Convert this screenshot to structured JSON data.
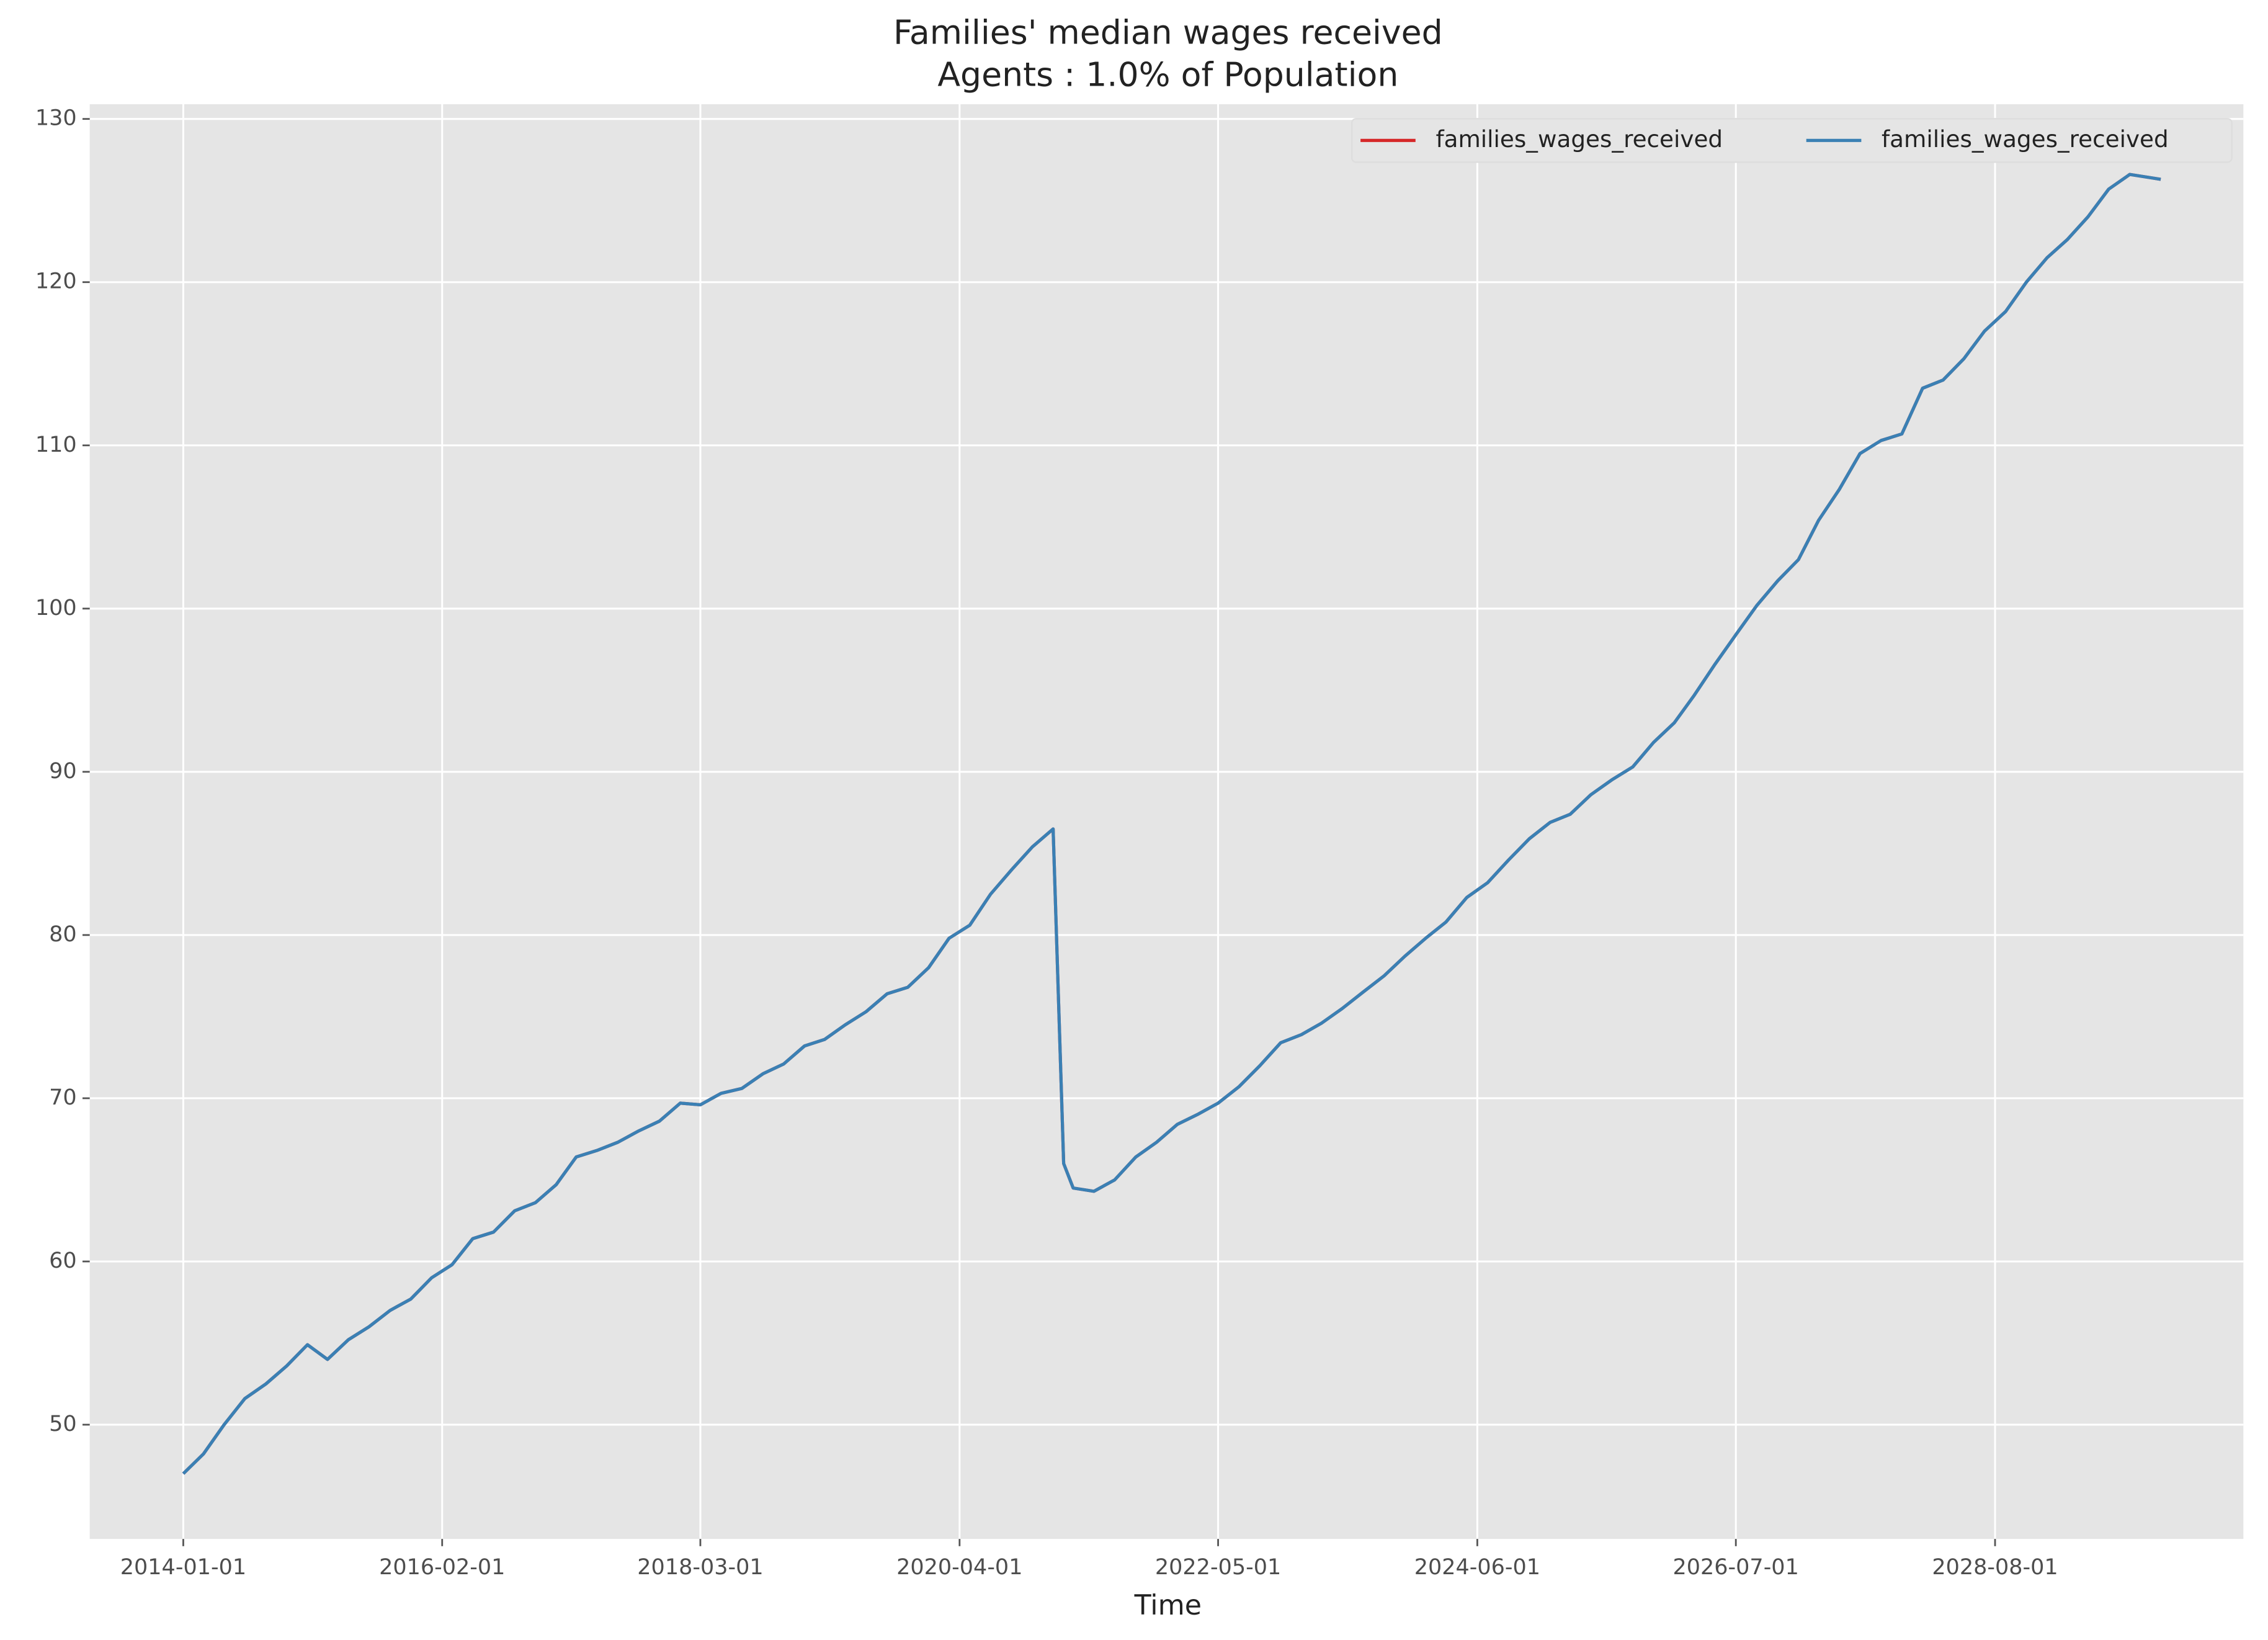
{
  "chart_data": {
    "type": "line",
    "title": "Families' median wages received",
    "subtitle": "Agents : 1.0% of Population",
    "xlabel": "Time",
    "x": [
      "2014-01-01",
      "2014-03-01",
      "2014-05-01",
      "2014-07-01",
      "2014-09-01",
      "2014-11-01",
      "2015-01-01",
      "2015-03-01",
      "2015-05-01",
      "2015-07-01",
      "2015-09-01",
      "2015-11-01",
      "2016-01-01",
      "2016-03-01",
      "2016-05-01",
      "2016-07-01",
      "2016-09-01",
      "2016-11-01",
      "2017-01-01",
      "2017-03-01",
      "2017-05-01",
      "2017-07-01",
      "2017-09-01",
      "2017-11-01",
      "2018-01-01",
      "2018-03-01",
      "2018-05-01",
      "2018-07-01",
      "2018-09-01",
      "2018-11-01",
      "2019-01-01",
      "2019-03-01",
      "2019-05-01",
      "2019-07-01",
      "2019-09-01",
      "2019-11-01",
      "2020-01-01",
      "2020-03-01",
      "2020-05-01",
      "2020-07-01",
      "2020-09-01",
      "2020-11-01",
      "2021-01-01",
      "2021-02-01",
      "2021-03-01",
      "2021-05-01",
      "2021-07-01",
      "2021-09-01",
      "2021-11-01",
      "2022-01-01",
      "2022-03-01",
      "2022-05-01",
      "2022-07-01",
      "2022-09-01",
      "2022-11-01",
      "2023-01-01",
      "2023-03-01",
      "2023-05-01",
      "2023-07-01",
      "2023-09-01",
      "2023-11-01",
      "2024-01-01",
      "2024-03-01",
      "2024-05-01",
      "2024-07-01",
      "2024-09-01",
      "2024-11-01",
      "2025-01-01",
      "2025-03-01",
      "2025-05-01",
      "2025-07-01",
      "2025-09-01",
      "2025-11-01",
      "2026-01-01",
      "2026-03-01",
      "2026-05-01",
      "2026-07-01",
      "2026-09-01",
      "2026-11-01",
      "2027-01-01",
      "2027-03-01",
      "2027-05-01",
      "2027-07-01",
      "2027-09-01",
      "2027-11-01",
      "2028-01-01",
      "2028-03-01",
      "2028-05-01",
      "2028-07-01",
      "2028-09-01",
      "2028-11-01",
      "2029-01-01",
      "2029-03-01",
      "2029-05-01",
      "2029-07-01",
      "2029-09-01",
      "2029-11-01",
      "2029-12-01"
    ],
    "series": [
      {
        "name": "families_wages_received",
        "color": "#d62728",
        "values": [
          47.0,
          48.2,
          50.0,
          51.6,
          52.5,
          53.6,
          54.9,
          54.0,
          55.2,
          56.0,
          57.0,
          57.7,
          59.0,
          59.8,
          61.4,
          61.8,
          63.1,
          63.6,
          64.7,
          66.4,
          66.8,
          67.3,
          68.0,
          68.6,
          69.7,
          69.6,
          70.3,
          70.6,
          71.5,
          72.1,
          73.2,
          73.6,
          74.5,
          75.3,
          76.4,
          76.8,
          78.0,
          79.8,
          80.6,
          82.5,
          84.0,
          85.4,
          86.5,
          66.0,
          64.5,
          64.3,
          65.0,
          66.4,
          67.3,
          68.4,
          69.0,
          69.7,
          70.7,
          72.0,
          73.4,
          73.9,
          74.6,
          75.5,
          76.5,
          77.5,
          78.7,
          79.8,
          80.8,
          82.3,
          83.2,
          84.6,
          85.9,
          86.9,
          87.4,
          88.6,
          89.5,
          90.3,
          91.8,
          93.0,
          94.7,
          96.6,
          98.4,
          100.2,
          101.7,
          103.0,
          105.4,
          107.3,
          109.5,
          110.3,
          110.7,
          113.5,
          114.0,
          115.3,
          117.0,
          118.2,
          120.0,
          121.5,
          122.6,
          124.0,
          125.7,
          126.6,
          126.4,
          126.3
        ]
      },
      {
        "name": "families_wages_received",
        "color": "#3a80b4",
        "values": [
          47.0,
          48.2,
          50.0,
          51.6,
          52.5,
          53.6,
          54.9,
          54.0,
          55.2,
          56.0,
          57.0,
          57.7,
          59.0,
          59.8,
          61.4,
          61.8,
          63.1,
          63.6,
          64.7,
          66.4,
          66.8,
          67.3,
          68.0,
          68.6,
          69.7,
          69.6,
          70.3,
          70.6,
          71.5,
          72.1,
          73.2,
          73.6,
          74.5,
          75.3,
          76.4,
          76.8,
          78.0,
          79.8,
          80.6,
          82.5,
          84.0,
          85.4,
          86.5,
          66.0,
          64.5,
          64.3,
          65.0,
          66.4,
          67.3,
          68.4,
          69.0,
          69.7,
          70.7,
          72.0,
          73.4,
          73.9,
          74.6,
          75.5,
          76.5,
          77.5,
          78.7,
          79.8,
          80.8,
          82.3,
          83.2,
          84.6,
          85.9,
          86.9,
          87.4,
          88.6,
          89.5,
          90.3,
          91.8,
          93.0,
          94.7,
          96.6,
          98.4,
          100.2,
          101.7,
          103.0,
          105.4,
          107.3,
          109.5,
          110.3,
          110.7,
          113.5,
          114.0,
          115.3,
          117.0,
          118.2,
          120.0,
          121.5,
          122.6,
          124.0,
          125.7,
          126.6,
          126.4,
          126.3
        ]
      }
    ],
    "xlim": [
      "2013-04-01",
      "2030-08-01"
    ],
    "xticks": [
      "2014-01-01",
      "2016-02-01",
      "2018-03-01",
      "2020-04-01",
      "2022-05-01",
      "2024-06-01",
      "2026-07-01",
      "2028-08-01"
    ],
    "ylim": [
      43.0,
      130.9
    ],
    "yticks": [
      50,
      60,
      70,
      80,
      90,
      100,
      110,
      120,
      130
    ],
    "grid": true,
    "legend": "upper right",
    "background": "#e5e5e5"
  }
}
